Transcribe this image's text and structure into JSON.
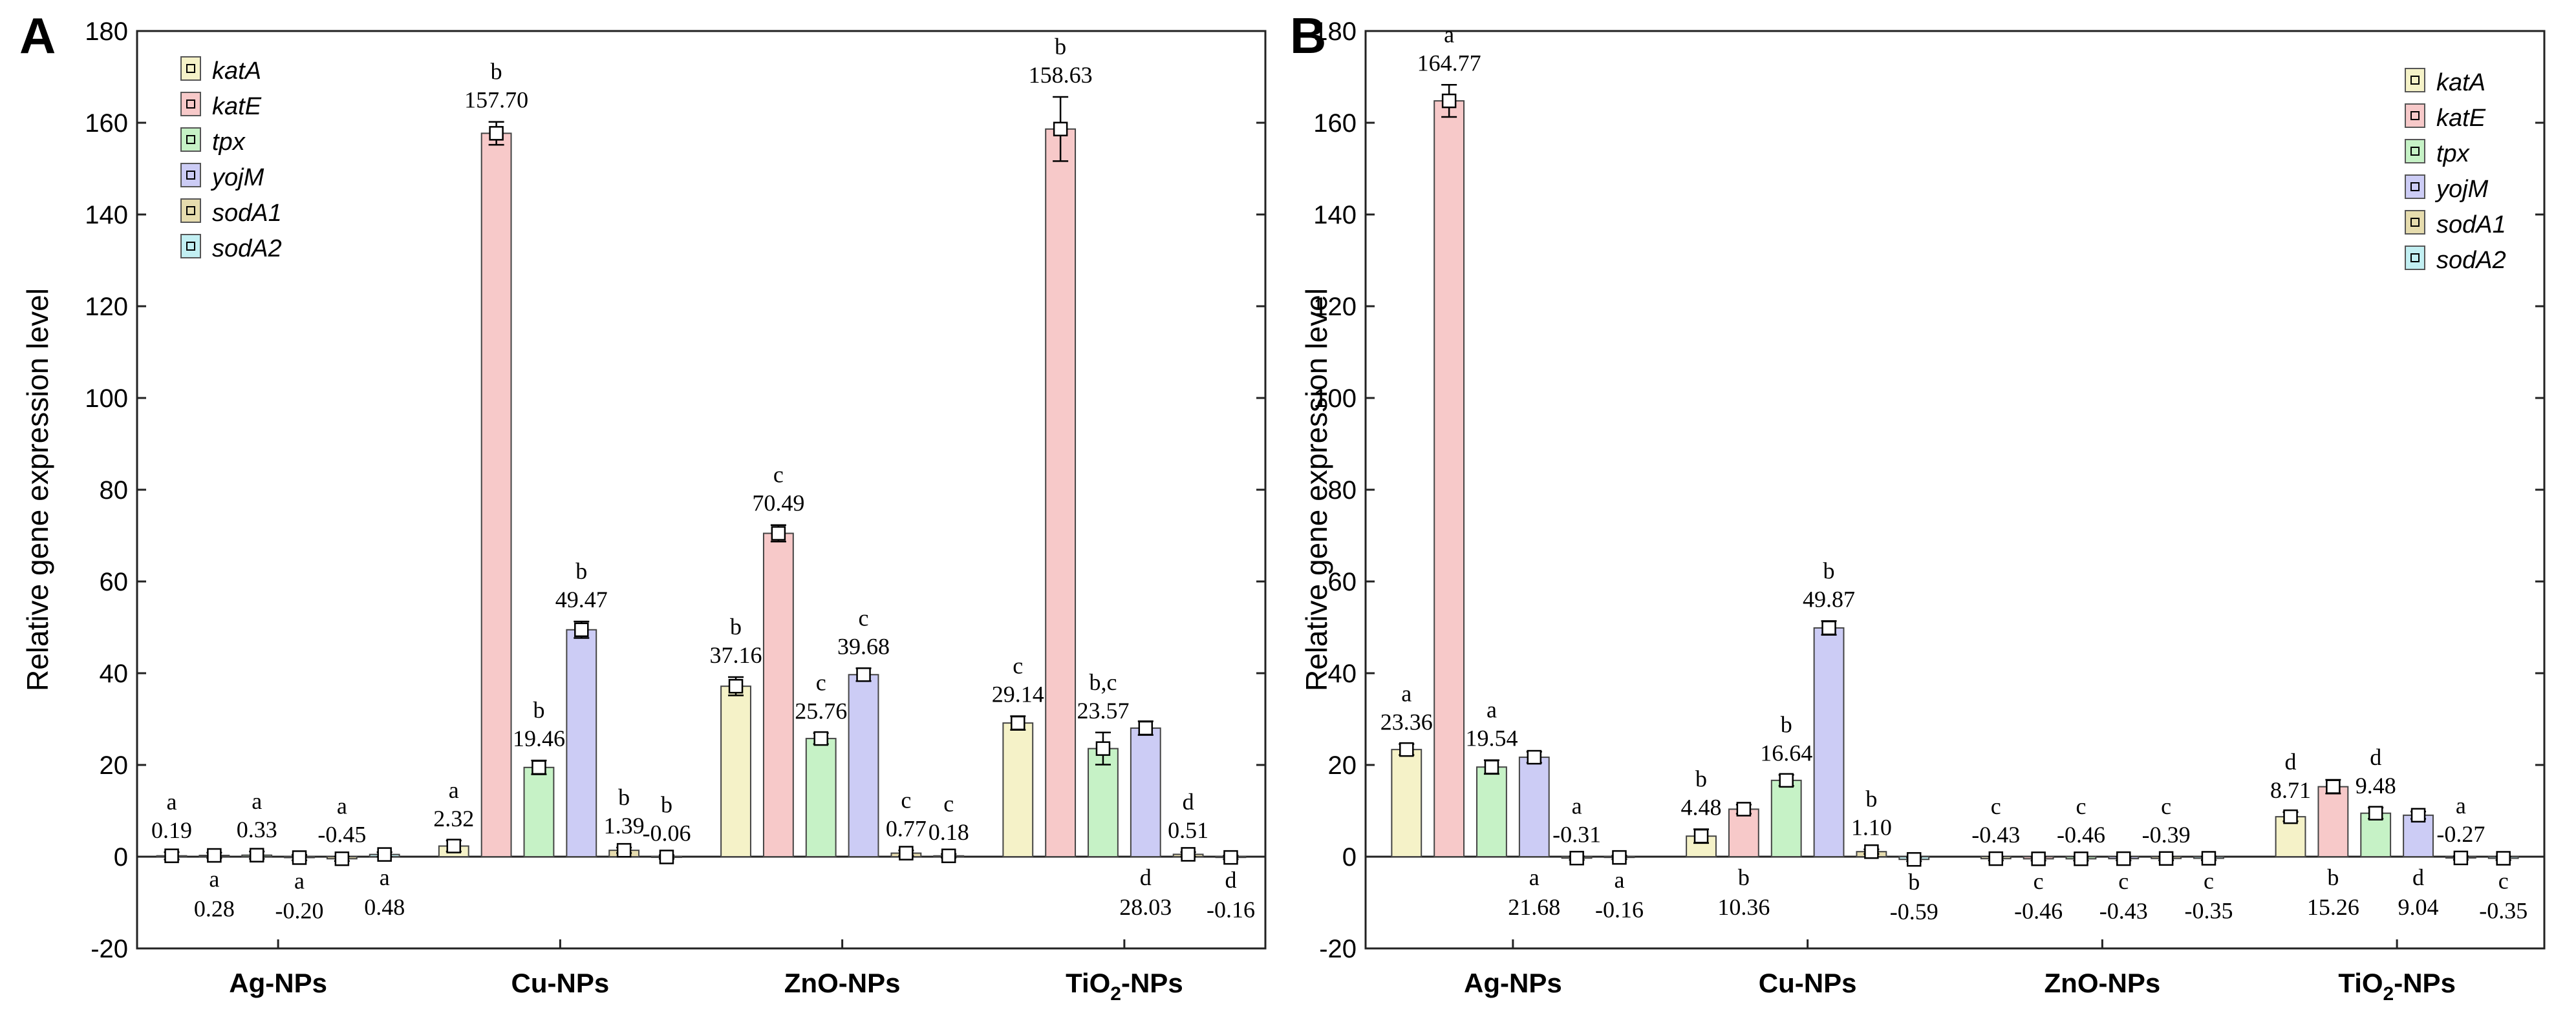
{
  "chart_data": [
    {
      "panel": "A",
      "type": "bar",
      "ylabel": "Relative gene expression level",
      "ylim": [
        -20,
        180
      ],
      "yticks": [
        -20,
        0,
        20,
        40,
        60,
        80,
        100,
        120,
        140,
        160,
        180
      ],
      "categories": [
        {
          "base": "Ag-NPs",
          "sub": ""
        },
        {
          "base": "Cu-NPs",
          "sub": ""
        },
        {
          "base": "ZnO-NPs",
          "sub": ""
        },
        {
          "base": "TiO",
          "sub": "2",
          "suffix": "-NPs"
        }
      ],
      "legend_position": "top-left",
      "series": [
        {
          "name": "katA",
          "color": "#f5f2c8",
          "values": [
            0.19,
            2.32,
            37.16,
            29.14
          ],
          "errors": [
            0.8,
            1.2,
            2.0,
            1.5
          ],
          "labels": [
            "0.19",
            "2.32",
            "37.16",
            "29.14"
          ],
          "letters": [
            "a",
            "a",
            "b",
            "c"
          ],
          "label_pos": [
            "above",
            "above",
            "above",
            "above"
          ]
        },
        {
          "name": "katE",
          "color": "#f7c9c9",
          "values": [
            0.28,
            157.7,
            70.49,
            158.63
          ],
          "errors": [
            0.6,
            2.5,
            1.8,
            7.0
          ],
          "labels": [
            "0.28",
            "157.70",
            "70.49",
            "158.63"
          ],
          "letters": [
            "a",
            "b",
            "c",
            "b"
          ],
          "label_pos": [
            "below",
            "above",
            "above",
            "above"
          ]
        },
        {
          "name": "tpx",
          "color": "#c6f2c6",
          "values": [
            0.33,
            19.46,
            25.76,
            23.57
          ],
          "errors": [
            0.8,
            1.5,
            1.2,
            3.5
          ],
          "labels": [
            "0.33",
            "19.46",
            "25.76",
            "23.57"
          ],
          "letters": [
            "a",
            "b",
            "c",
            "b,c"
          ],
          "label_pos": [
            "above",
            "above",
            "above",
            "above"
          ]
        },
        {
          "name": "yojM",
          "color": "#ccccf5",
          "values": [
            -0.2,
            49.47,
            39.68,
            28.03
          ],
          "errors": [
            0.6,
            1.8,
            1.4,
            1.5
          ],
          "labels": [
            "-0.20",
            "49.47",
            "39.68",
            "28.03"
          ],
          "letters": [
            "a",
            "b",
            "c",
            "d"
          ],
          "label_pos": [
            "below",
            "above",
            "above",
            "below"
          ]
        },
        {
          "name": "sodA1",
          "color": "#e6dcae",
          "values": [
            -0.45,
            1.39,
            0.77,
            0.51
          ],
          "errors": [
            0.5,
            0.6,
            0.6,
            0.5
          ],
          "labels": [
            "-0.45",
            "1.39",
            "0.77",
            "0.51"
          ],
          "letters": [
            "a",
            "b",
            "c",
            "d"
          ],
          "label_pos": [
            "above",
            "above",
            "above",
            "above"
          ]
        },
        {
          "name": "sodA2",
          "color": "#c2eff2",
          "values": [
            0.48,
            -0.06,
            0.18,
            -0.16
          ],
          "errors": [
            0.5,
            0.4,
            0.4,
            0.4
          ],
          "labels": [
            "0.48",
            "-0.06",
            "0.18",
            "-0.16"
          ],
          "letters": [
            "a",
            "b",
            "c",
            "d"
          ],
          "label_pos": [
            "below",
            "above",
            "above",
            "below"
          ]
        }
      ]
    },
    {
      "panel": "B",
      "type": "bar",
      "ylabel": "Relative gene expression level",
      "ylim": [
        -20,
        180
      ],
      "yticks": [
        -20,
        0,
        20,
        40,
        60,
        80,
        100,
        120,
        140,
        160,
        180
      ],
      "categories": [
        {
          "base": "Ag-NPs",
          "sub": ""
        },
        {
          "base": "Cu-NPs",
          "sub": ""
        },
        {
          "base": "ZnO-NPs",
          "sub": ""
        },
        {
          "base": "TiO",
          "sub": "2",
          "suffix": "-NPs"
        }
      ],
      "legend_position": "top-right",
      "series": [
        {
          "name": "katA",
          "color": "#f5f2c8",
          "values": [
            23.36,
            4.48,
            -0.43,
            8.71
          ],
          "errors": [
            1.2,
            1.5,
            0.4,
            1.0
          ],
          "labels": [
            "23.36",
            "4.48",
            "-0.43",
            "8.71"
          ],
          "letters": [
            "a",
            "b",
            "c",
            "d"
          ],
          "label_pos": [
            "above",
            "above",
            "above",
            "above"
          ]
        },
        {
          "name": "katE",
          "color": "#f7c9c9",
          "values": [
            164.77,
            10.36,
            -0.46,
            15.26
          ],
          "errors": [
            3.5,
            1.0,
            0.4,
            1.5
          ],
          "labels": [
            "164.77",
            "10.36",
            "-0.46",
            "15.26"
          ],
          "letters": [
            "a",
            "b",
            "c",
            "b"
          ],
          "label_pos": [
            "above",
            "below",
            "below",
            "below"
          ]
        },
        {
          "name": "tpx",
          "color": "#c6f2c6",
          "values": [
            19.54,
            16.64,
            -0.46,
            9.48
          ],
          "errors": [
            1.5,
            1.2,
            0.4,
            1.2
          ],
          "labels": [
            "19.54",
            "16.64",
            "-0.46",
            "9.48"
          ],
          "letters": [
            "a",
            "b",
            "c",
            "d"
          ],
          "label_pos": [
            "above",
            "above",
            "above",
            "above"
          ]
        },
        {
          "name": "yojM",
          "color": "#ccccf5",
          "values": [
            21.68,
            49.87,
            -0.43,
            9.04
          ],
          "errors": [
            1.2,
            1.5,
            0.4,
            0.8
          ],
          "labels": [
            "21.68",
            "49.87",
            "-0.43",
            "9.04"
          ],
          "letters": [
            "a",
            "b",
            "c",
            "d"
          ],
          "label_pos": [
            "below",
            "above",
            "below",
            "below"
          ]
        },
        {
          "name": "sodA1",
          "color": "#e6dcae",
          "values": [
            -0.31,
            1.1,
            -0.39,
            -0.27
          ],
          "errors": [
            0.4,
            0.5,
            0.4,
            0.4
          ],
          "labels": [
            "-0.31",
            "1.10",
            "-0.39",
            "-0.27"
          ],
          "letters": [
            "a",
            "b",
            "c",
            "a"
          ],
          "label_pos": [
            "above",
            "above",
            "above",
            "above"
          ]
        },
        {
          "name": "sodA2",
          "color": "#c2eff2",
          "values": [
            -0.16,
            -0.59,
            -0.35,
            -0.35
          ],
          "errors": [
            0.4,
            0.4,
            0.4,
            0.4
          ],
          "labels": [
            "-0.16",
            "-0.59",
            "-0.35",
            "-0.35"
          ],
          "letters": [
            "a",
            "b",
            "c",
            "c"
          ],
          "label_pos": [
            "below",
            "below",
            "below",
            "below"
          ]
        }
      ]
    }
  ]
}
